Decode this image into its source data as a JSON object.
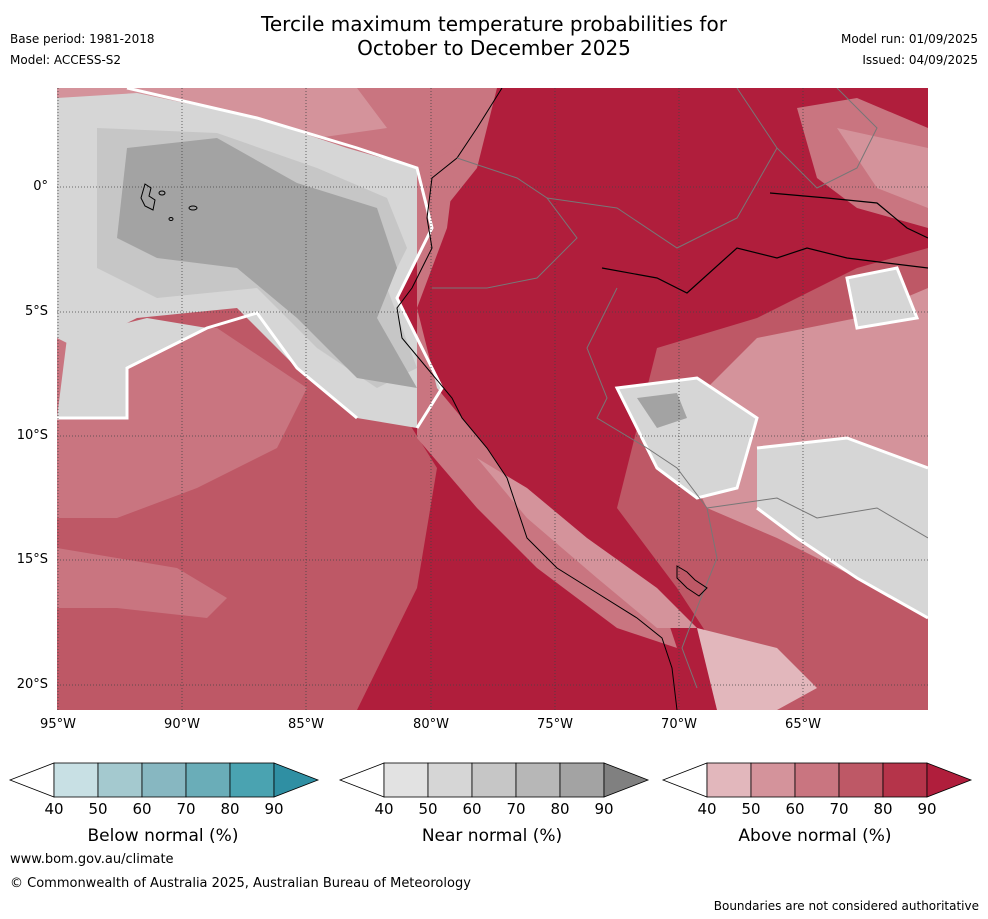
{
  "header": {
    "title_line1": "Tercile maximum temperature probabilities for",
    "title_line2": "October to December 2025",
    "base_period": "Base period: 1981-2018",
    "model": "Model: ACCESS-S2",
    "model_run": "Model run: 01/09/2025",
    "issued": "Issued: 04/09/2025"
  },
  "map": {
    "lat_labels": [
      "0°",
      "5°S",
      "10°S",
      "15°S",
      "20°S"
    ],
    "lon_labels": [
      "95°W",
      "90°W",
      "85°W",
      "80°W",
      "75°W",
      "70°W",
      "65°W"
    ]
  },
  "legend": {
    "ticks": [
      "40",
      "50",
      "60",
      "70",
      "80",
      "90"
    ],
    "below": {
      "title": "Below normal (%)",
      "colors": [
        "#c8e0e4",
        "#a4c9cf",
        "#87b7c1",
        "#6aadb8",
        "#4aa3b1",
        "#2f8fa3"
      ]
    },
    "near": {
      "title": "Near normal (%)",
      "colors": [
        "#e2e2e2",
        "#d6d6d6",
        "#c6c6c6",
        "#b7b7b7",
        "#a3a3a3",
        "#808080"
      ]
    },
    "above": {
      "title": "Above normal (%)",
      "colors": [
        "#e2b7bc",
        "#d4939b",
        "#c97580",
        "#be5866",
        "#b5344a",
        "#b01e3c"
      ]
    }
  },
  "footer": {
    "url": "www.bom.gov.au/climate",
    "copyright": "© Commonwealth of Australia 2025, Australian Bureau of Meteorology",
    "note": "Boundaries are not considered authoritative"
  }
}
